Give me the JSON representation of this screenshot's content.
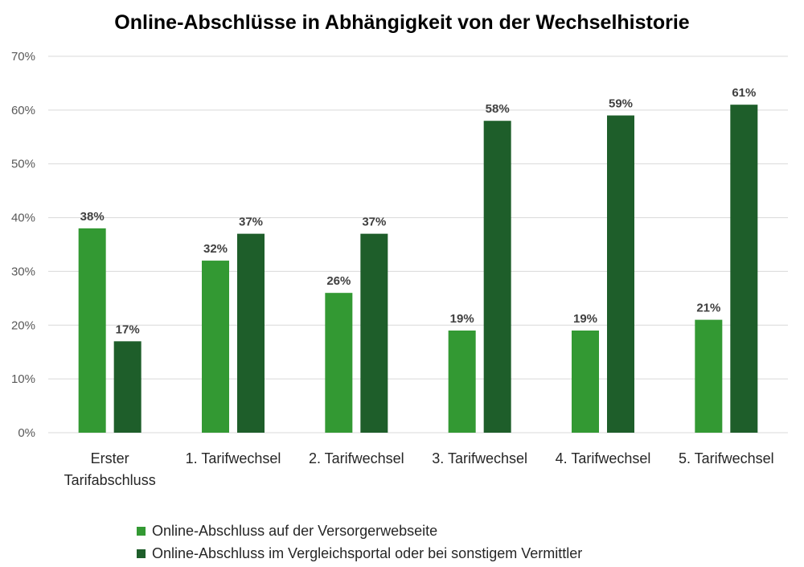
{
  "chart_data": {
    "type": "bar",
    "title": "Online-Abschlüsse in Abhängigkeit von der Wechselhistorie",
    "categories": [
      [
        "Erster",
        "Tarifabschluss"
      ],
      [
        "1. Tarifwechsel"
      ],
      [
        "2. Tarifwechsel"
      ],
      [
        "3. Tarifwechsel"
      ],
      [
        "4. Tarifwechsel"
      ],
      [
        "5. Tarifwechsel"
      ]
    ],
    "series": [
      {
        "name": "Online-Abschluss auf der Versorgerwebseite",
        "color": "#339933",
        "values": [
          38,
          32,
          26,
          19,
          19,
          21
        ],
        "labels": [
          "38%",
          "32%",
          "26%",
          "19%",
          "19%",
          "21%"
        ]
      },
      {
        "name": "Online-Abschluss im Vergleichsportal oder bei sonstigem Vermittler",
        "color": "#1e5e2a",
        "values": [
          17,
          37,
          37,
          58,
          59,
          61
        ],
        "labels": [
          "17%",
          "37%",
          "37%",
          "58%",
          "59%",
          "61%"
        ]
      }
    ],
    "yticks": [
      "0%",
      "10%",
      "20%",
      "30%",
      "40%",
      "50%",
      "60%",
      "70%"
    ],
    "ylim": [
      0,
      70
    ],
    "grid": true,
    "legend_position": "bottom"
  }
}
